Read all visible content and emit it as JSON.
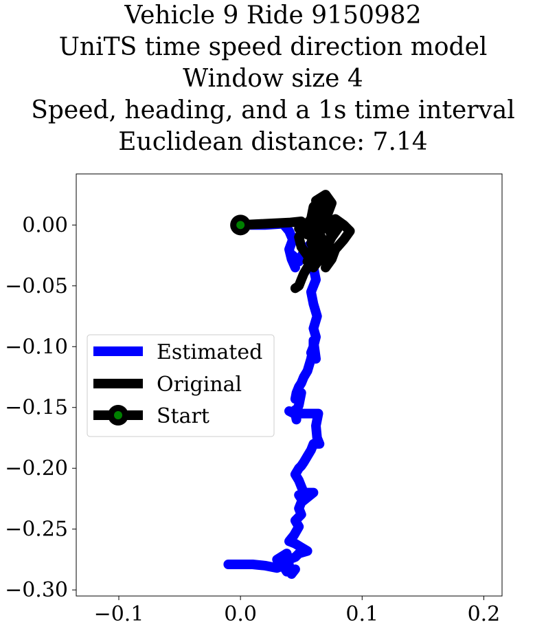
{
  "chart_data": {
    "type": "line",
    "title_lines": [
      "Vehicle 9 Ride 9150982",
      "UniTS time speed direction model",
      "Window size 4",
      "Speed, heading, and a 1s time interval",
      "Euclidean distance: 7.14"
    ],
    "xlabel": "",
    "ylabel": "",
    "xlim": [
      -0.135,
      0.215
    ],
    "ylim": [
      -0.305,
      0.042
    ],
    "xticks": [
      -0.1,
      0.0,
      0.1,
      0.2
    ],
    "xtick_labels": [
      "−0.1",
      "0.0",
      "0.1",
      "0.2"
    ],
    "yticks": [
      0.0,
      -0.05,
      -0.1,
      -0.15,
      -0.2,
      -0.25,
      -0.3
    ],
    "ytick_labels": [
      "0.00",
      "−0.05",
      "−0.10",
      "−0.15",
      "−0.20",
      "−0.25",
      "−0.30"
    ],
    "grid": false,
    "legend": {
      "placement": "center-left",
      "entries": [
        {
          "label": "Estimated",
          "color": "#0000ff"
        },
        {
          "label": "Original",
          "color": "#000000"
        },
        {
          "label": "Start",
          "color": "#000000",
          "marker_color": "#008000"
        }
      ]
    },
    "series": [
      {
        "name": "Estimated",
        "color": "#0000ff",
        "x": [
          0.0,
          0.02,
          0.035,
          0.04,
          0.043,
          0.04,
          0.042,
          0.045,
          0.043,
          0.048,
          0.052,
          0.058,
          0.06,
          0.062,
          0.058,
          0.06,
          0.063,
          0.06,
          0.062,
          0.06,
          0.058,
          0.062,
          0.06,
          0.06,
          0.058,
          0.055,
          0.052,
          0.05,
          0.048,
          0.046,
          0.045,
          0.05,
          0.048,
          0.045,
          0.046,
          0.045,
          0.048,
          0.04,
          0.046,
          0.05,
          0.064,
          0.062,
          0.063,
          0.065,
          0.06,
          0.058,
          0.055,
          0.052,
          0.05,
          0.048,
          0.045,
          0.048,
          0.05,
          0.052,
          0.048,
          0.05,
          0.055,
          0.06,
          0.05,
          0.048,
          0.05,
          0.045,
          0.048,
          0.044,
          0.04,
          0.045,
          0.05,
          0.055,
          0.048,
          0.045,
          0.04,
          0.035,
          0.04,
          0.038,
          0.03,
          0.035,
          0.038,
          0.045,
          0.042,
          0.04,
          0.038,
          0.035,
          0.03,
          0.02,
          0.01,
          0.0,
          -0.01
        ],
        "y": [
          0.0,
          0.0,
          0.001,
          -0.005,
          -0.012,
          -0.02,
          -0.028,
          -0.035,
          -0.025,
          -0.03,
          -0.022,
          -0.015,
          -0.035,
          -0.045,
          -0.055,
          -0.065,
          -0.075,
          -0.085,
          -0.092,
          -0.1,
          -0.105,
          -0.11,
          -0.095,
          -0.1,
          -0.11,
          -0.12,
          -0.125,
          -0.13,
          -0.133,
          -0.138,
          -0.143,
          -0.138,
          -0.148,
          -0.155,
          -0.16,
          -0.152,
          -0.155,
          -0.153,
          -0.156,
          -0.155,
          -0.155,
          -0.165,
          -0.175,
          -0.18,
          -0.18,
          -0.185,
          -0.19,
          -0.195,
          -0.198,
          -0.2,
          -0.205,
          -0.21,
          -0.215,
          -0.22,
          -0.222,
          -0.225,
          -0.22,
          -0.22,
          -0.228,
          -0.233,
          -0.238,
          -0.243,
          -0.248,
          -0.255,
          -0.26,
          -0.262,
          -0.265,
          -0.268,
          -0.27,
          -0.273,
          -0.275,
          -0.278,
          -0.28,
          -0.27,
          -0.275,
          -0.28,
          -0.285,
          -0.283,
          -0.287,
          -0.282,
          -0.285,
          -0.28,
          -0.282,
          -0.28,
          -0.279,
          -0.279,
          -0.279
        ]
      },
      {
        "name": "Original",
        "color": "#000000",
        "x": [
          0.0,
          0.02,
          0.04,
          0.05,
          0.048,
          0.055,
          0.06,
          0.065,
          0.062,
          0.07,
          0.075,
          0.072,
          0.068,
          0.065,
          0.07,
          0.075,
          0.08,
          0.078,
          0.085,
          0.09,
          0.085,
          0.078,
          0.075,
          0.07,
          0.072,
          0.068,
          0.065,
          0.06,
          0.058,
          0.062,
          0.06,
          0.055,
          0.05,
          0.048,
          0.052,
          0.058,
          0.06,
          0.065,
          0.07,
          0.072,
          0.075,
          0.07,
          0.065,
          0.06,
          0.055,
          0.058,
          0.062,
          0.06,
          0.055,
          0.052,
          0.05,
          0.048,
          0.045
        ],
        "y": [
          0.0,
          0.001,
          0.002,
          0.003,
          -0.003,
          -0.008,
          -0.005,
          0.01,
          0.02,
          0.025,
          0.018,
          0.01,
          0.0,
          -0.008,
          -0.015,
          -0.01,
          -0.003,
          0.005,
          0.0,
          -0.005,
          -0.012,
          -0.02,
          -0.028,
          -0.035,
          -0.025,
          -0.018,
          -0.012,
          -0.008,
          -0.015,
          -0.022,
          -0.03,
          -0.025,
          -0.018,
          -0.01,
          -0.002,
          0.005,
          0.015,
          0.02,
          0.01,
          0.0,
          -0.01,
          -0.02,
          -0.028,
          -0.035,
          -0.03,
          -0.022,
          -0.015,
          -0.025,
          -0.035,
          -0.04,
          -0.045,
          -0.05,
          -0.052
        ]
      }
    ],
    "start_point": {
      "name": "Start",
      "x": 0.0,
      "y": 0.0,
      "color": "#000000",
      "marker_color": "#008000"
    }
  }
}
